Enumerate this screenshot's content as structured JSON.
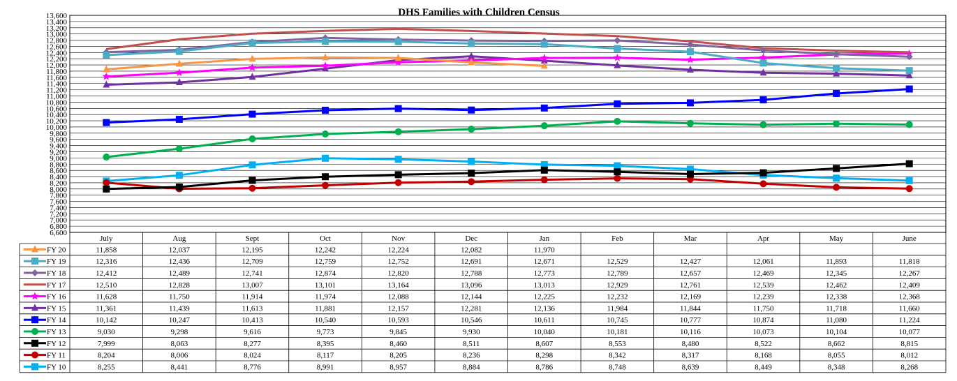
{
  "chart_data": {
    "type": "line",
    "title": "DHS Families with Children Census",
    "categories": [
      "July",
      "Aug",
      "Sept",
      "Oct",
      "Nov",
      "Dec",
      "Jan",
      "Feb",
      "Mar",
      "Apr",
      "May",
      "June"
    ],
    "ylim": [
      6600,
      13600
    ],
    "ystep": 200,
    "y_ticks": [
      "6,600",
      "6,800",
      "7,000",
      "7,200",
      "7,400",
      "7,600",
      "7,800",
      "8,000",
      "8,200",
      "8,400",
      "8,600",
      "8,800",
      "9,000",
      "9,200",
      "9,400",
      "9,600",
      "9,800",
      "10,000",
      "10,200",
      "10,400",
      "10,600",
      "10,800",
      "11,000",
      "11,200",
      "11,400",
      "11,600",
      "11,800",
      "12,000",
      "12,200",
      "12,400",
      "12,600",
      "12,800",
      "13,000",
      "13,200",
      "13,400",
      "13,600"
    ],
    "grid": true,
    "legend": "data-table-left",
    "series": [
      {
        "name": "FY 20",
        "color": "#f79646",
        "marker": "triangle",
        "values": [
          11858,
          12037,
          12195,
          12242,
          12224,
          12082,
          11970,
          null,
          null,
          null,
          null,
          null
        ],
        "labels": [
          "11,858",
          "12,037",
          "12,195",
          "12,242",
          "12,224",
          "12,082",
          "11,970",
          "",
          "",
          "",
          "",
          ""
        ]
      },
      {
        "name": "FY 19",
        "color": "#4bacc6",
        "marker": "square",
        "values": [
          12316,
          12436,
          12709,
          12759,
          12752,
          12691,
          12671,
          12529,
          12427,
          12061,
          11893,
          11818
        ],
        "labels": [
          "12,316",
          "12,436",
          "12,709",
          "12,759",
          "12,752",
          "12,691",
          "12,671",
          "12,529",
          "12,427",
          "12,061",
          "11,893",
          "11,818"
        ]
      },
      {
        "name": "FY 18",
        "color": "#8064a2",
        "marker": "diamond",
        "values": [
          12412,
          12489,
          12741,
          12874,
          12820,
          12788,
          12773,
          12789,
          12657,
          12469,
          12345,
          12267
        ],
        "labels": [
          "12,412",
          "12,489",
          "12,741",
          "12,874",
          "12,820",
          "12,788",
          "12,773",
          "12,789",
          "12,657",
          "12,469",
          "12,345",
          "12,267"
        ]
      },
      {
        "name": "FY 17",
        "color": "#c0504d",
        "marker": "none",
        "values": [
          12510,
          12828,
          13007,
          13101,
          13164,
          13096,
          13013,
          12929,
          12761,
          12539,
          12462,
          12409
        ],
        "labels": [
          "12,510",
          "12,828",
          "13,007",
          "13,101",
          "13,164",
          "13,096",
          "13,013",
          "12,929",
          "12,761",
          "12,539",
          "12,462",
          "12,409"
        ]
      },
      {
        "name": "FY 16",
        "color": "#ff00ff",
        "marker": "star",
        "values": [
          11628,
          11750,
          11914,
          11974,
          12088,
          12144,
          12225,
          12232,
          12169,
          12239,
          12338,
          12368
        ],
        "labels": [
          "11,628",
          "11,750",
          "11,914",
          "11,974",
          "12,088",
          "12,144",
          "12,225",
          "12,232",
          "12,169",
          "12,239",
          "12,338",
          "12,368"
        ]
      },
      {
        "name": "FY 15",
        "color": "#7030a0",
        "marker": "triangle",
        "values": [
          11361,
          11439,
          11613,
          11881,
          12157,
          12281,
          12136,
          11984,
          11844,
          11750,
          11718,
          11660
        ],
        "labels": [
          "11,361",
          "11,439",
          "11,613",
          "11,881",
          "12,157",
          "12,281",
          "12,136",
          "11,984",
          "11,844",
          "11,750",
          "11,718",
          "11,660"
        ]
      },
      {
        "name": "FY 14",
        "color": "#0000ff",
        "marker": "square",
        "values": [
          10142,
          10247,
          10413,
          10540,
          10593,
          10546,
          10611,
          10745,
          10777,
          10874,
          11080,
          11224
        ],
        "labels": [
          "10,142",
          "10,247",
          "10,413",
          "10,540",
          "10,593",
          "10,546",
          "10,611",
          "10,745",
          "10,777",
          "10,874",
          "11,080",
          "11,224"
        ]
      },
      {
        "name": "FY 13",
        "color": "#00b050",
        "marker": "circle",
        "values": [
          9030,
          9298,
          9616,
          9773,
          9845,
          9930,
          10040,
          10181,
          10116,
          10073,
          10104,
          10077
        ],
        "labels": [
          "9,030",
          "9,298",
          "9,616",
          "9,773",
          "9,845",
          "9,930",
          "10,040",
          "10,181",
          "10,116",
          "10,073",
          "10,104",
          "10,077"
        ]
      },
      {
        "name": "FY 12",
        "color": "#000000",
        "marker": "square",
        "values": [
          7999,
          8063,
          8277,
          8395,
          8460,
          8511,
          8607,
          8553,
          8480,
          8522,
          8662,
          8815
        ],
        "labels": [
          "7,999",
          "8,063",
          "8,277",
          "8,395",
          "8,460",
          "8,511",
          "8,607",
          "8,553",
          "8,480",
          "8,522",
          "8,662",
          "8,815"
        ]
      },
      {
        "name": "FY 11",
        "color": "#c00000",
        "marker": "circle",
        "values": [
          8204,
          8006,
          8024,
          8117,
          8205,
          8236,
          8298,
          8342,
          8317,
          8168,
          8055,
          8012
        ],
        "labels": [
          "8,204",
          "8,006",
          "8,024",
          "8,117",
          "8,205",
          "8,236",
          "8,298",
          "8,342",
          "8,317",
          "8,168",
          "8,055",
          "8,012"
        ]
      },
      {
        "name": "FY 10",
        "color": "#00b0f0",
        "marker": "square",
        "values": [
          8255,
          8441,
          8776,
          8991,
          8957,
          8884,
          8786,
          8748,
          8639,
          8449,
          8348,
          8268
        ],
        "labels": [
          "8,255",
          "8,441",
          "8,776",
          "8,991",
          "8,957",
          "8,884",
          "8,786",
          "8,748",
          "8,639",
          "8,449",
          "8,348",
          "8,268"
        ]
      }
    ]
  }
}
